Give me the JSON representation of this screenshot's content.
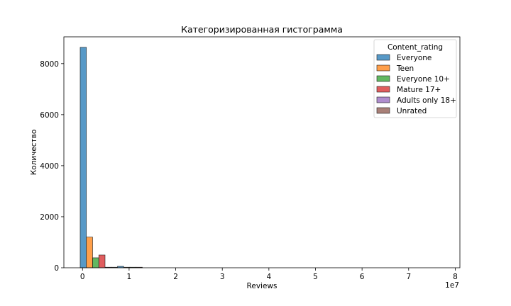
{
  "chart_data": {
    "type": "bar",
    "title": "Категоризированная гистограмма",
    "xlabel": "Reviews",
    "ylabel": "Количество",
    "x_offset_label": "1e7",
    "xlim": [
      -0.4,
      8.1
    ],
    "ylim": [
      0,
      9050
    ],
    "x_ticks": [
      0,
      1,
      2,
      3,
      4,
      5,
      6,
      7,
      8
    ],
    "x_tick_labels": [
      "0",
      "1",
      "2",
      "3",
      "4",
      "5",
      "6",
      "7",
      "8"
    ],
    "y_ticks": [
      0,
      2000,
      4000,
      6000,
      8000
    ],
    "y_tick_labels": [
      "0",
      "2000",
      "4000",
      "6000",
      "8000"
    ],
    "grid": false,
    "legend": {
      "title": "Content_rating",
      "placement": "top-right",
      "entries": [
        {
          "name": "Everyone",
          "color": "#1f77b4"
        },
        {
          "name": "Teen",
          "color": "#ff7f0e"
        },
        {
          "name": "Everyone 10+",
          "color": "#2ca02c"
        },
        {
          "name": "Mature 17+",
          "color": "#d62728"
        },
        {
          "name": "Adults only 18+",
          "color": "#9467bd"
        },
        {
          "name": "Unrated",
          "color": "#8c564b"
        }
      ]
    },
    "bin_edges": [
      -0.05,
      0.75,
      1.55
    ],
    "series": [
      {
        "name": "Everyone",
        "color": "#1f77b4",
        "values": [
          8640,
          55
        ]
      },
      {
        "name": "Teen",
        "color": "#ff7f0e",
        "values": [
          1200,
          12
        ]
      },
      {
        "name": "Everyone 10+",
        "color": "#2ca02c",
        "values": [
          390,
          5
        ]
      },
      {
        "name": "Mature 17+",
        "color": "#d62728",
        "values": [
          500,
          4
        ]
      },
      {
        "name": "Adults only 18+",
        "color": "#9467bd",
        "values": [
          3,
          0
        ]
      },
      {
        "name": "Unrated",
        "color": "#8c564b",
        "values": [
          2,
          0
        ]
      }
    ]
  }
}
